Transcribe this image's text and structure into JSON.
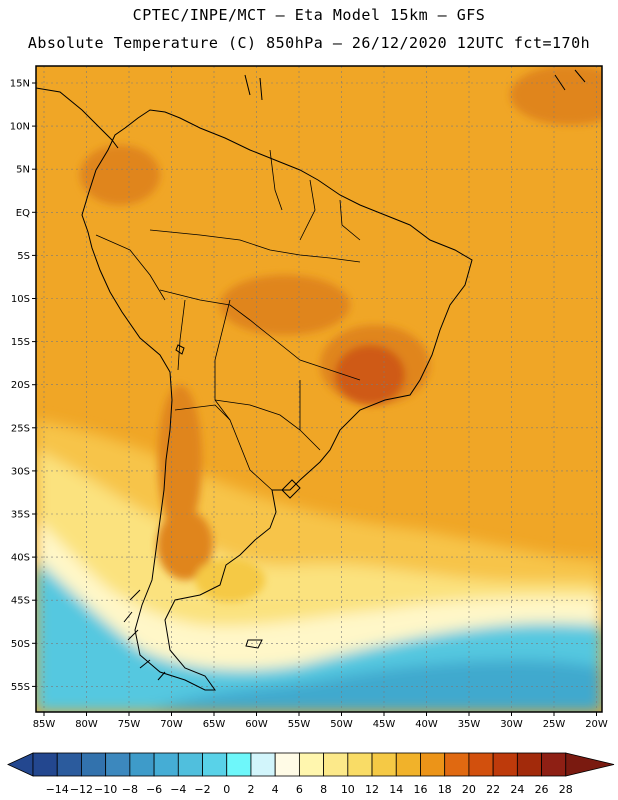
{
  "header": {
    "line1": "CPTEC/INPE/MCT –  Eta Model 15km – GFS",
    "line2": "Absolute Temperature (C) 850hPa – 26/12/2020 12UTC fct=170h"
  },
  "map": {
    "lat_labels": [
      "15N",
      "10N",
      "5N",
      "EQ",
      "5S",
      "10S",
      "15S",
      "20S",
      "25S",
      "30S",
      "35S",
      "40S",
      "45S",
      "50S",
      "55S"
    ],
    "lon_labels": [
      "85W",
      "80W",
      "75W",
      "70W",
      "65W",
      "60W",
      "55W",
      "50W",
      "45W",
      "40W",
      "35W",
      "30W",
      "25W",
      "20W"
    ],
    "field": "temperature-850hPa",
    "colors": {
      "warm_main": "#F0A626",
      "hot": "#E0851C",
      "very_hot": "#CF5A12",
      "mild": "#F7C44A",
      "cool": "#FBE27E",
      "pale": "#FFF7C8",
      "cold": "#55C8E0",
      "colder": "#3FA9CE",
      "coast": "#000000",
      "grid": "#7a7a7a"
    }
  },
  "colorbar": {
    "labels": [
      "-14",
      "-12",
      "-10",
      "-8",
      "-6",
      "-4",
      "-2",
      "0",
      "2",
      "4",
      "6",
      "8",
      "10",
      "12",
      "14",
      "16",
      "18",
      "20",
      "22",
      "24",
      "26",
      "28"
    ],
    "colors": [
      "#23478F",
      "#2B5B9D",
      "#3272AD",
      "#3C88BE",
      "#3E9BC9",
      "#45ADD5",
      "#50BFDD",
      "#59D2E8",
      "#6EF7FA",
      "#D2F5FB",
      "#FFFBE6",
      "#FFF6AE",
      "#FCE98A",
      "#F9DC66",
      "#F5C945",
      "#F1B22A",
      "#EC9418",
      "#E06911",
      "#D2500D",
      "#BE3A0B",
      "#A22A0B",
      "#8E1F14",
      "#7A1A10"
    ]
  }
}
